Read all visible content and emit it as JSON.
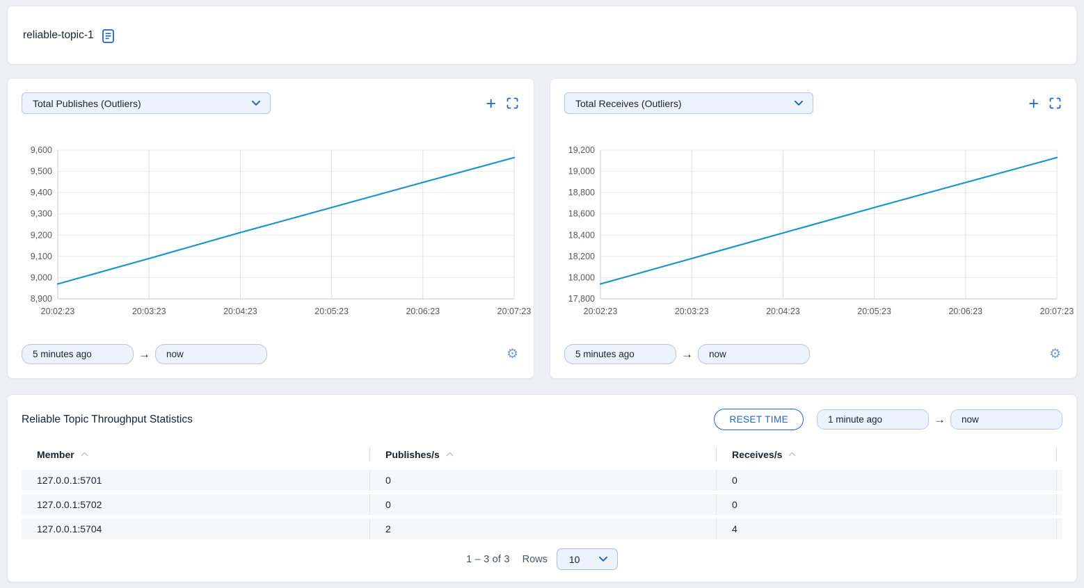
{
  "colors": {
    "accent": "#2563c0",
    "line": "#1e96c8",
    "select_bg": "#edf3fc",
    "select_border": "#b9c7da",
    "grid_h": "#e9ebee",
    "grid_v": "#dcdfe2",
    "axis": "#c6c9cd",
    "tick_text": "#55585d"
  },
  "icons": {
    "plus": "+",
    "arrow_right": "→",
    "gear": "⚙"
  },
  "header": {
    "title": "reliable-topic-1"
  },
  "charts": [
    {
      "from": "5 minutes ago",
      "to": "now"
    },
    {
      "from": "5 minutes ago",
      "to": "now"
    }
  ],
  "chart_data": [
    {
      "type": "line",
      "title": "Total Publishes (Outliers)",
      "x": [
        "20:02:23",
        "20:03:23",
        "20:04:23",
        "20:05:23",
        "20:06:23",
        "20:07:23"
      ],
      "values": [
        8970,
        9090,
        9212,
        9330,
        9448,
        9565
      ],
      "ylim": [
        8900,
        9600
      ],
      "ytick_step": 100,
      "xlabel": "",
      "ylabel": "",
      "grid": true,
      "legend": "none",
      "line_color": "#1e96c8"
    },
    {
      "type": "line",
      "title": "Total Receives (Outliers)",
      "x": [
        "20:02:23",
        "20:03:23",
        "20:04:23",
        "20:05:23",
        "20:06:23",
        "20:07:23"
      ],
      "values": [
        17940,
        18180,
        18420,
        18660,
        18895,
        19130
      ],
      "ylim": [
        17800,
        19200
      ],
      "ytick_step": 200,
      "xlabel": "",
      "ylabel": "",
      "grid": true,
      "legend": "none",
      "line_color": "#1e96c8"
    }
  ],
  "stats": {
    "title": "Reliable Topic Throughput Statistics",
    "reset_button": "RESET TIME",
    "from": "1 minute ago",
    "to": "now",
    "columns": [
      "Member",
      "Publishes/s",
      "Receives/s"
    ],
    "rows": [
      {
        "member": "127.0.0.1:5701",
        "publishes": "0",
        "receives": "0"
      },
      {
        "member": "127.0.0.1:5702",
        "publishes": "0",
        "receives": "0"
      },
      {
        "member": "127.0.0.1:5704",
        "publishes": "2",
        "receives": "4"
      }
    ],
    "pagination": {
      "range": "1 – 3 of 3",
      "rows_label": "Rows",
      "rows_per_page": "10"
    }
  }
}
